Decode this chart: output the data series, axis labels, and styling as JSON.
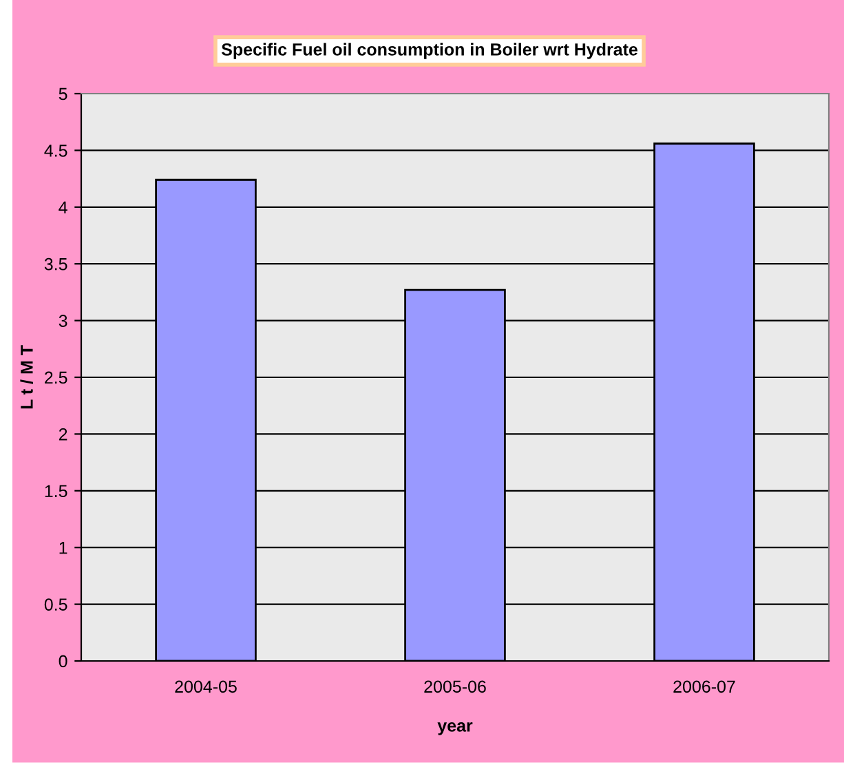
{
  "chart_data": {
    "type": "bar",
    "title": "Specific Fuel oil consumption in Boiler wrt Hydrate",
    "xlabel": "year",
    "ylabel": "L t / M T",
    "categories": [
      "2004-05",
      "2005-06",
      "2006-07"
    ],
    "values": [
      4.24,
      3.27,
      4.56
    ],
    "color": "#9999ff",
    "ylim": [
      0,
      5
    ],
    "yticks": [
      0,
      0.5,
      1,
      1.5,
      2,
      2.5,
      3,
      3.5,
      4,
      4.5,
      5
    ],
    "grid": "y"
  }
}
